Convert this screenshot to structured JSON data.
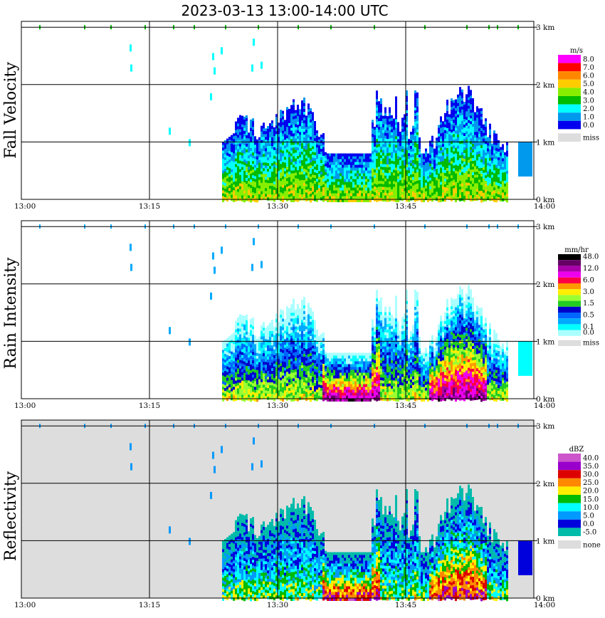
{
  "title": "2023-03-13  13:00-14:00 UTC",
  "chart_data": [
    {
      "type": "heatmap",
      "title": "Fall Velocity",
      "unit": "m/s",
      "x_ticks": [
        "13:00",
        "13:15",
        "13:30",
        "13:45",
        "14:00"
      ],
      "y_ticks": [
        "0 km",
        "1 km",
        "2 km",
        "3 km"
      ],
      "xlim": [
        "13:00",
        "14:00"
      ],
      "ylim_km": [
        0,
        3.1
      ],
      "grid": true,
      "legend": "right",
      "scale": [
        {
          "label": "8.0",
          "color": "#ff00ff"
        },
        {
          "label": "7.0",
          "color": "#ff0000"
        },
        {
          "label": "6.0",
          "color": "#ff8800"
        },
        {
          "label": "5.0",
          "color": "#ffcc00"
        },
        {
          "label": "4.0",
          "color": "#88ee00"
        },
        {
          "label": "3.0",
          "color": "#00bb00"
        },
        {
          "label": "2.0",
          "color": "#00ffff"
        },
        {
          "label": "1.0",
          "color": "#0099ee"
        },
        {
          "label": "0.0",
          "color": "#0000ee"
        },
        {
          "label": "miss",
          "color": "#dddddd"
        }
      ],
      "background": "#ffffff"
    },
    {
      "type": "heatmap",
      "title": "Rain Intensity",
      "unit": "mm/hr",
      "x_ticks": [
        "13:00",
        "13:15",
        "13:30",
        "13:45",
        "14:00"
      ],
      "y_ticks": [
        "0 km",
        "1 km",
        "2 km",
        "3 km"
      ],
      "xlim": [
        "13:00",
        "14:00"
      ],
      "ylim_km": [
        0,
        3.1
      ],
      "grid": true,
      "legend": "right",
      "scale": [
        {
          "label": "48.0",
          "color": "#000000"
        },
        {
          "label": "",
          "color": "#660066"
        },
        {
          "label": "12.0",
          "color": "#aa00aa"
        },
        {
          "label": "",
          "color": "#ee00ee"
        },
        {
          "label": "6.0",
          "color": "#ff0044"
        },
        {
          "label": "",
          "color": "#ff9900"
        },
        {
          "label": "3.0",
          "color": "#ffee00"
        },
        {
          "label": "",
          "color": "#99ff33"
        },
        {
          "label": "1.5",
          "color": "#22cc22"
        },
        {
          "label": "",
          "color": "#0000cc"
        },
        {
          "label": "0.5",
          "color": "#0066ff"
        },
        {
          "label": "",
          "color": "#00aaff"
        },
        {
          "label": "0.1",
          "color": "#00ffff"
        },
        {
          "label": "0.0",
          "color": "#aaffff"
        },
        {
          "label": "miss",
          "color": "#dddddd"
        }
      ],
      "background": "#ffffff"
    },
    {
      "type": "heatmap",
      "title": "Reflectivity",
      "unit": "dBZ",
      "x_ticks": [
        "13:00",
        "13:15",
        "13:30",
        "13:45",
        "14:00"
      ],
      "y_ticks": [
        "0 km",
        "1 km",
        "2 km",
        "3 km"
      ],
      "xlim": [
        "13:00",
        "14:00"
      ],
      "ylim_km": [
        0,
        3.1
      ],
      "grid": true,
      "legend": "right",
      "scale": [
        {
          "label": "40.0",
          "color": "#cc55cc"
        },
        {
          "label": "35.0",
          "color": "#9900cc"
        },
        {
          "label": "30.0",
          "color": "#dd0000"
        },
        {
          "label": "25.0",
          "color": "#ff8800"
        },
        {
          "label": "20.0",
          "color": "#ffee00"
        },
        {
          "label": "15.0",
          "color": "#00bb00"
        },
        {
          "label": "10.0",
          "color": "#00ffff"
        },
        {
          "label": "5.0",
          "color": "#0099ff"
        },
        {
          "label": "0.0",
          "color": "#0000dd"
        },
        {
          "label": "-5.0",
          "color": "#00bbaa"
        },
        {
          "label": "none",
          "color": "#dddddd"
        }
      ],
      "background": "#dddddd"
    }
  ]
}
